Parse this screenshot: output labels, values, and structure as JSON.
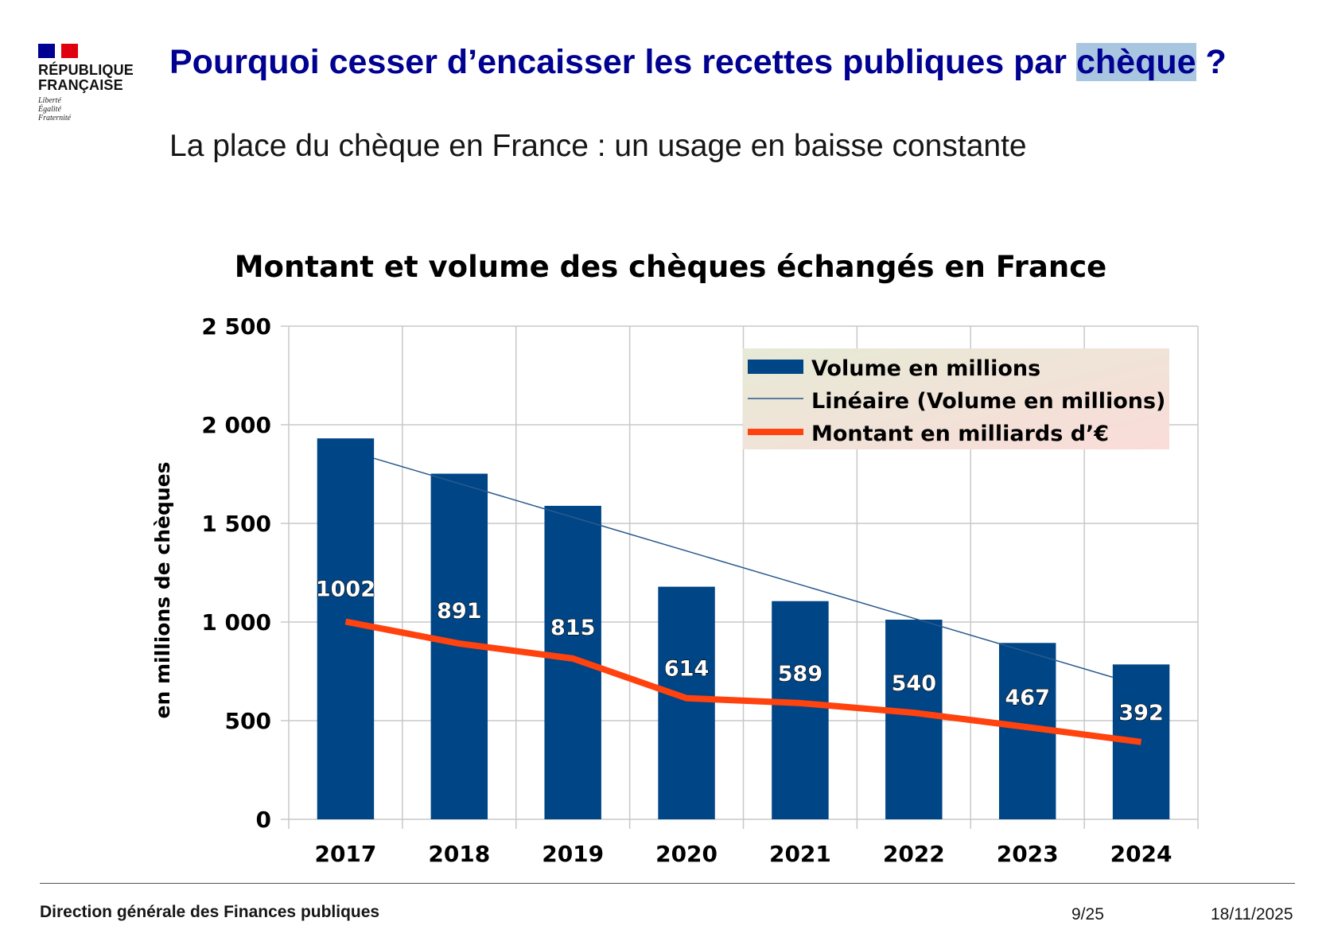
{
  "logo": {
    "line1": "RÉPUBLIQUE",
    "line2": "FRANÇAISE",
    "motto": [
      "Liberté",
      "Égalité",
      "Fraternité"
    ]
  },
  "header": {
    "title_before": "Pourquoi cesser d’encaisser les recettes publiques par ",
    "title_highlight": "chèque",
    "title_after": " ?",
    "subtitle": "La place du chèque en France : un usage en baisse constante"
  },
  "footer": {
    "org": "Direction générale des Finances publiques",
    "page": "9/25",
    "date": "18/11/2025"
  },
  "colors": {
    "title": "#000091",
    "bars": "#004586",
    "trend": "#2a5a8c",
    "montant": "#ff420e",
    "highlight": "#a9c6e0"
  },
  "chart_data": {
    "type": "bar",
    "title": "Montant et volume des chèques échangés en France",
    "xlabel": "",
    "ylabel": "en millions de chèques",
    "ylim": [
      0,
      2500
    ],
    "yticks": [
      0,
      500,
      1000,
      1500,
      2000,
      2500
    ],
    "ytick_labels": [
      "0",
      "500",
      "1 000",
      "1 500",
      "2 000",
      "2 500"
    ],
    "grid": true,
    "legend_position": "top-right",
    "categories": [
      "2017",
      "2018",
      "2019",
      "2020",
      "2021",
      "2022",
      "2023",
      "2024"
    ],
    "series": [
      {
        "name": "Volume en millions",
        "type": "bar",
        "values": [
          1931,
          1752,
          1589,
          1179,
          1106,
          1012,
          894,
          785
        ]
      },
      {
        "name": "Linéaire (Volume en millions)",
        "type": "trendline",
        "values": [
          1830,
          1670,
          1510,
          1350,
          1190,
          1030,
          870,
          720
        ]
      },
      {
        "name": "Montant en milliards d’€",
        "type": "line",
        "values": [
          1002,
          891,
          815,
          614,
          589,
          540,
          467,
          392
        ],
        "data_labels": [
          "1002",
          "891",
          "815",
          "614",
          "589",
          "540",
          "467",
          "392"
        ]
      }
    ]
  }
}
